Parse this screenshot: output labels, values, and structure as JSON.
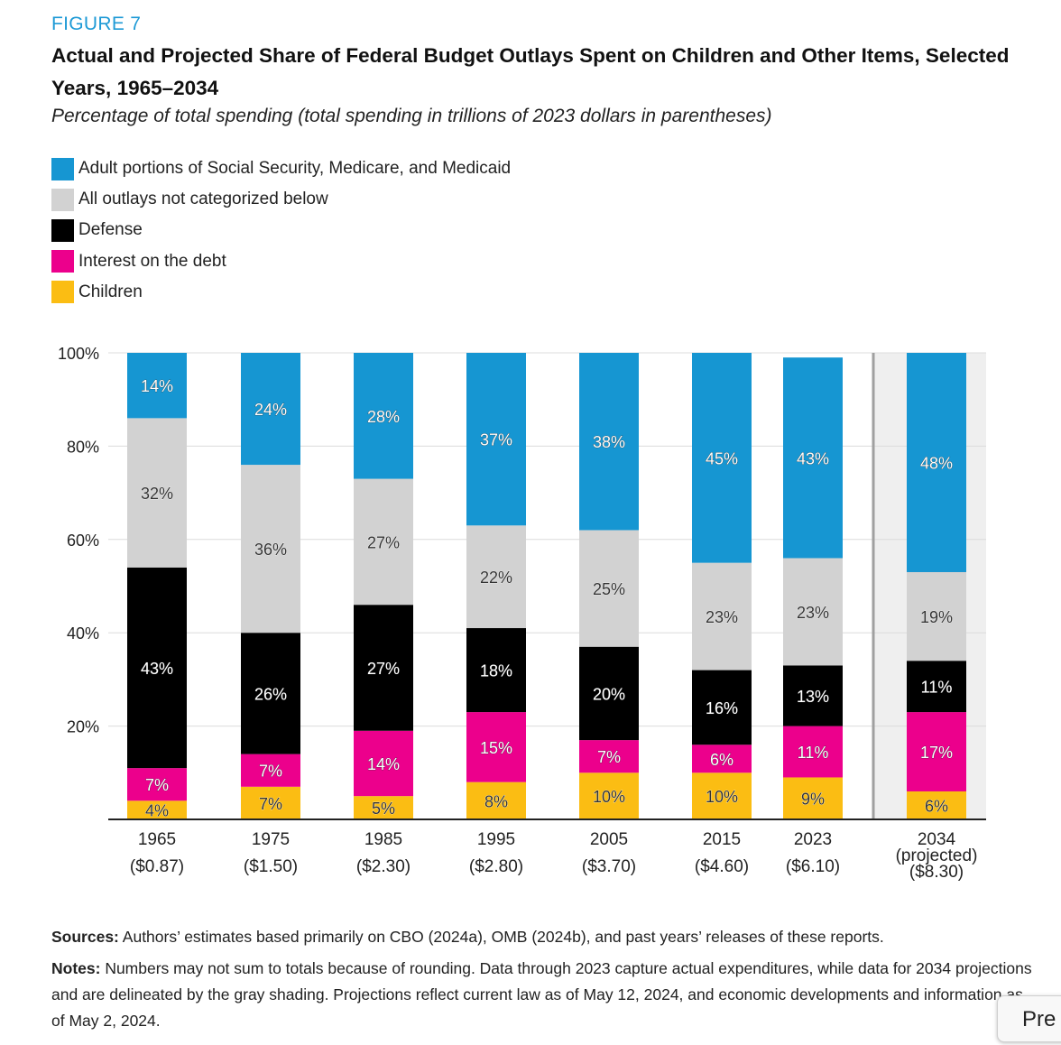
{
  "figure": {
    "label": "FIGURE 7",
    "title": "Actual and Projected Share of Federal Budget Outlays Spent on Children and Other Items, Selected Years, 1965–2034",
    "subtitle": "Percentage of total spending (total spending in trillions of 2023 dollars in parentheses)"
  },
  "chart_data": {
    "type": "bar",
    "stacked": true,
    "title": "Actual and Projected Share of Federal Budget Outlays Spent on Children and Other Items, Selected Years, 1965–2034",
    "xlabel": "",
    "ylabel": "",
    "ylim": [
      0,
      100
    ],
    "yticks": [
      "20%",
      "40%",
      "60%",
      "80%",
      "100%"
    ],
    "grid": true,
    "legend_position": "top-left",
    "categories": [
      "1965",
      "1975",
      "1985",
      "1995",
      "2005",
      "2015",
      "2023",
      "2034"
    ],
    "category_labels": [
      [
        "1965",
        "($0.87)"
      ],
      [
        "1975",
        "($1.50)"
      ],
      [
        "1985",
        "($2.30)"
      ],
      [
        "1995",
        "($2.80)"
      ],
      [
        "2005",
        "($3.70)"
      ],
      [
        "2015",
        "($4.60)"
      ],
      [
        "2023",
        "($6.10)"
      ],
      [
        "2034",
        "(projected)",
        "($8.30)"
      ]
    ],
    "total_spending_trillions_2023_dollars": [
      0.87,
      1.5,
      2.3,
      2.8,
      3.7,
      4.6,
      6.1,
      8.3
    ],
    "projected_categories": [
      "2034"
    ],
    "series": [
      {
        "name": "Children",
        "color": "#fbbd13",
        "values": [
          4,
          7,
          5,
          8,
          10,
          10,
          9,
          6
        ],
        "labels": [
          "4%",
          "7%",
          "5%",
          "8%",
          "10%",
          "10%",
          "9%",
          "6%"
        ]
      },
      {
        "name": "Interest on the debt",
        "color": "#ec008c",
        "values": [
          7,
          7,
          14,
          15,
          7,
          6,
          11,
          17
        ],
        "labels": [
          "7%",
          "7%",
          "14%",
          "15%",
          "7%",
          "6%",
          "11%",
          "17%"
        ]
      },
      {
        "name": "Defense",
        "color": "#000000",
        "values": [
          43,
          26,
          27,
          18,
          20,
          16,
          13,
          11
        ],
        "labels": [
          "43%",
          "26%",
          "27%",
          "18%",
          "20%",
          "16%",
          "13%",
          "11%"
        ]
      },
      {
        "name": "All outlays not categorized below",
        "color": "#d2d2d2",
        "values": [
          32,
          36,
          27,
          22,
          25,
          23,
          23,
          19
        ],
        "labels": [
          "32%",
          "36%",
          "27%",
          "22%",
          "25%",
          "23%",
          "23%",
          "19%"
        ]
      },
      {
        "name": "Adult portions of Social Security, Medicare, and Medicaid",
        "color": "#1696d2",
        "values": [
          14,
          24,
          28,
          37,
          38,
          45,
          43,
          48
        ],
        "labels": [
          "14%",
          "24%",
          "28%",
          "37%",
          "38%",
          "45%",
          "43%",
          "48%"
        ]
      }
    ]
  },
  "legend": {
    "items": [
      {
        "label": "Adult portions of Social Security, Medicare, and Medicaid",
        "color": "#1696d2"
      },
      {
        "label": "All outlays not categorized below",
        "color": "#d2d2d2"
      },
      {
        "label": "Defense",
        "color": "#000000"
      },
      {
        "label": "Interest on the debt",
        "color": "#ec008c"
      },
      {
        "label": "Children",
        "color": "#fbbd13"
      }
    ]
  },
  "notes": {
    "sources_heading": "Sources:",
    "sources_text": " Authors’ estimates based primarily on CBO (2024a), OMB (2024b), and past years’ releases of these reports.",
    "notes_heading": "Notes:",
    "notes_text": " Numbers may not sum to totals because of rounding. Data through 2023 capture actual expenditures, while data for 2034 projections and are delineated by the gray shading. Projections reflect current law as of May 12, 2024, and economic developments and information as of May 2, 2024."
  },
  "preview_button": {
    "label": "Pre"
  }
}
